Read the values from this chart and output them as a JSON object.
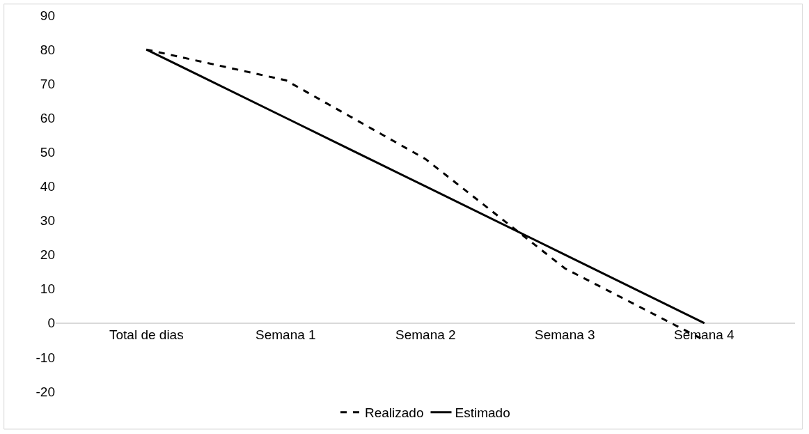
{
  "chart_data": {
    "type": "line",
    "categories": [
      "Total de dias",
      "Semana 1",
      "Semana 2",
      "Semana 3",
      "Semana 4"
    ],
    "series": [
      {
        "name": "Realizado",
        "color": "#000000",
        "values": [
          80,
          71,
          48,
          16,
          -5
        ],
        "line_style": "dashed"
      },
      {
        "name": "Estimado",
        "color": "#000000",
        "values": [
          80,
          60,
          40,
          20,
          0
        ],
        "line_style": "solid"
      }
    ],
    "ylim": [
      -20,
      90
    ],
    "yticks": [
      -20,
      -10,
      0,
      10,
      20,
      30,
      40,
      50,
      60,
      70,
      80,
      90
    ],
    "grid": false,
    "legend": "bottom",
    "marker": "none"
  }
}
